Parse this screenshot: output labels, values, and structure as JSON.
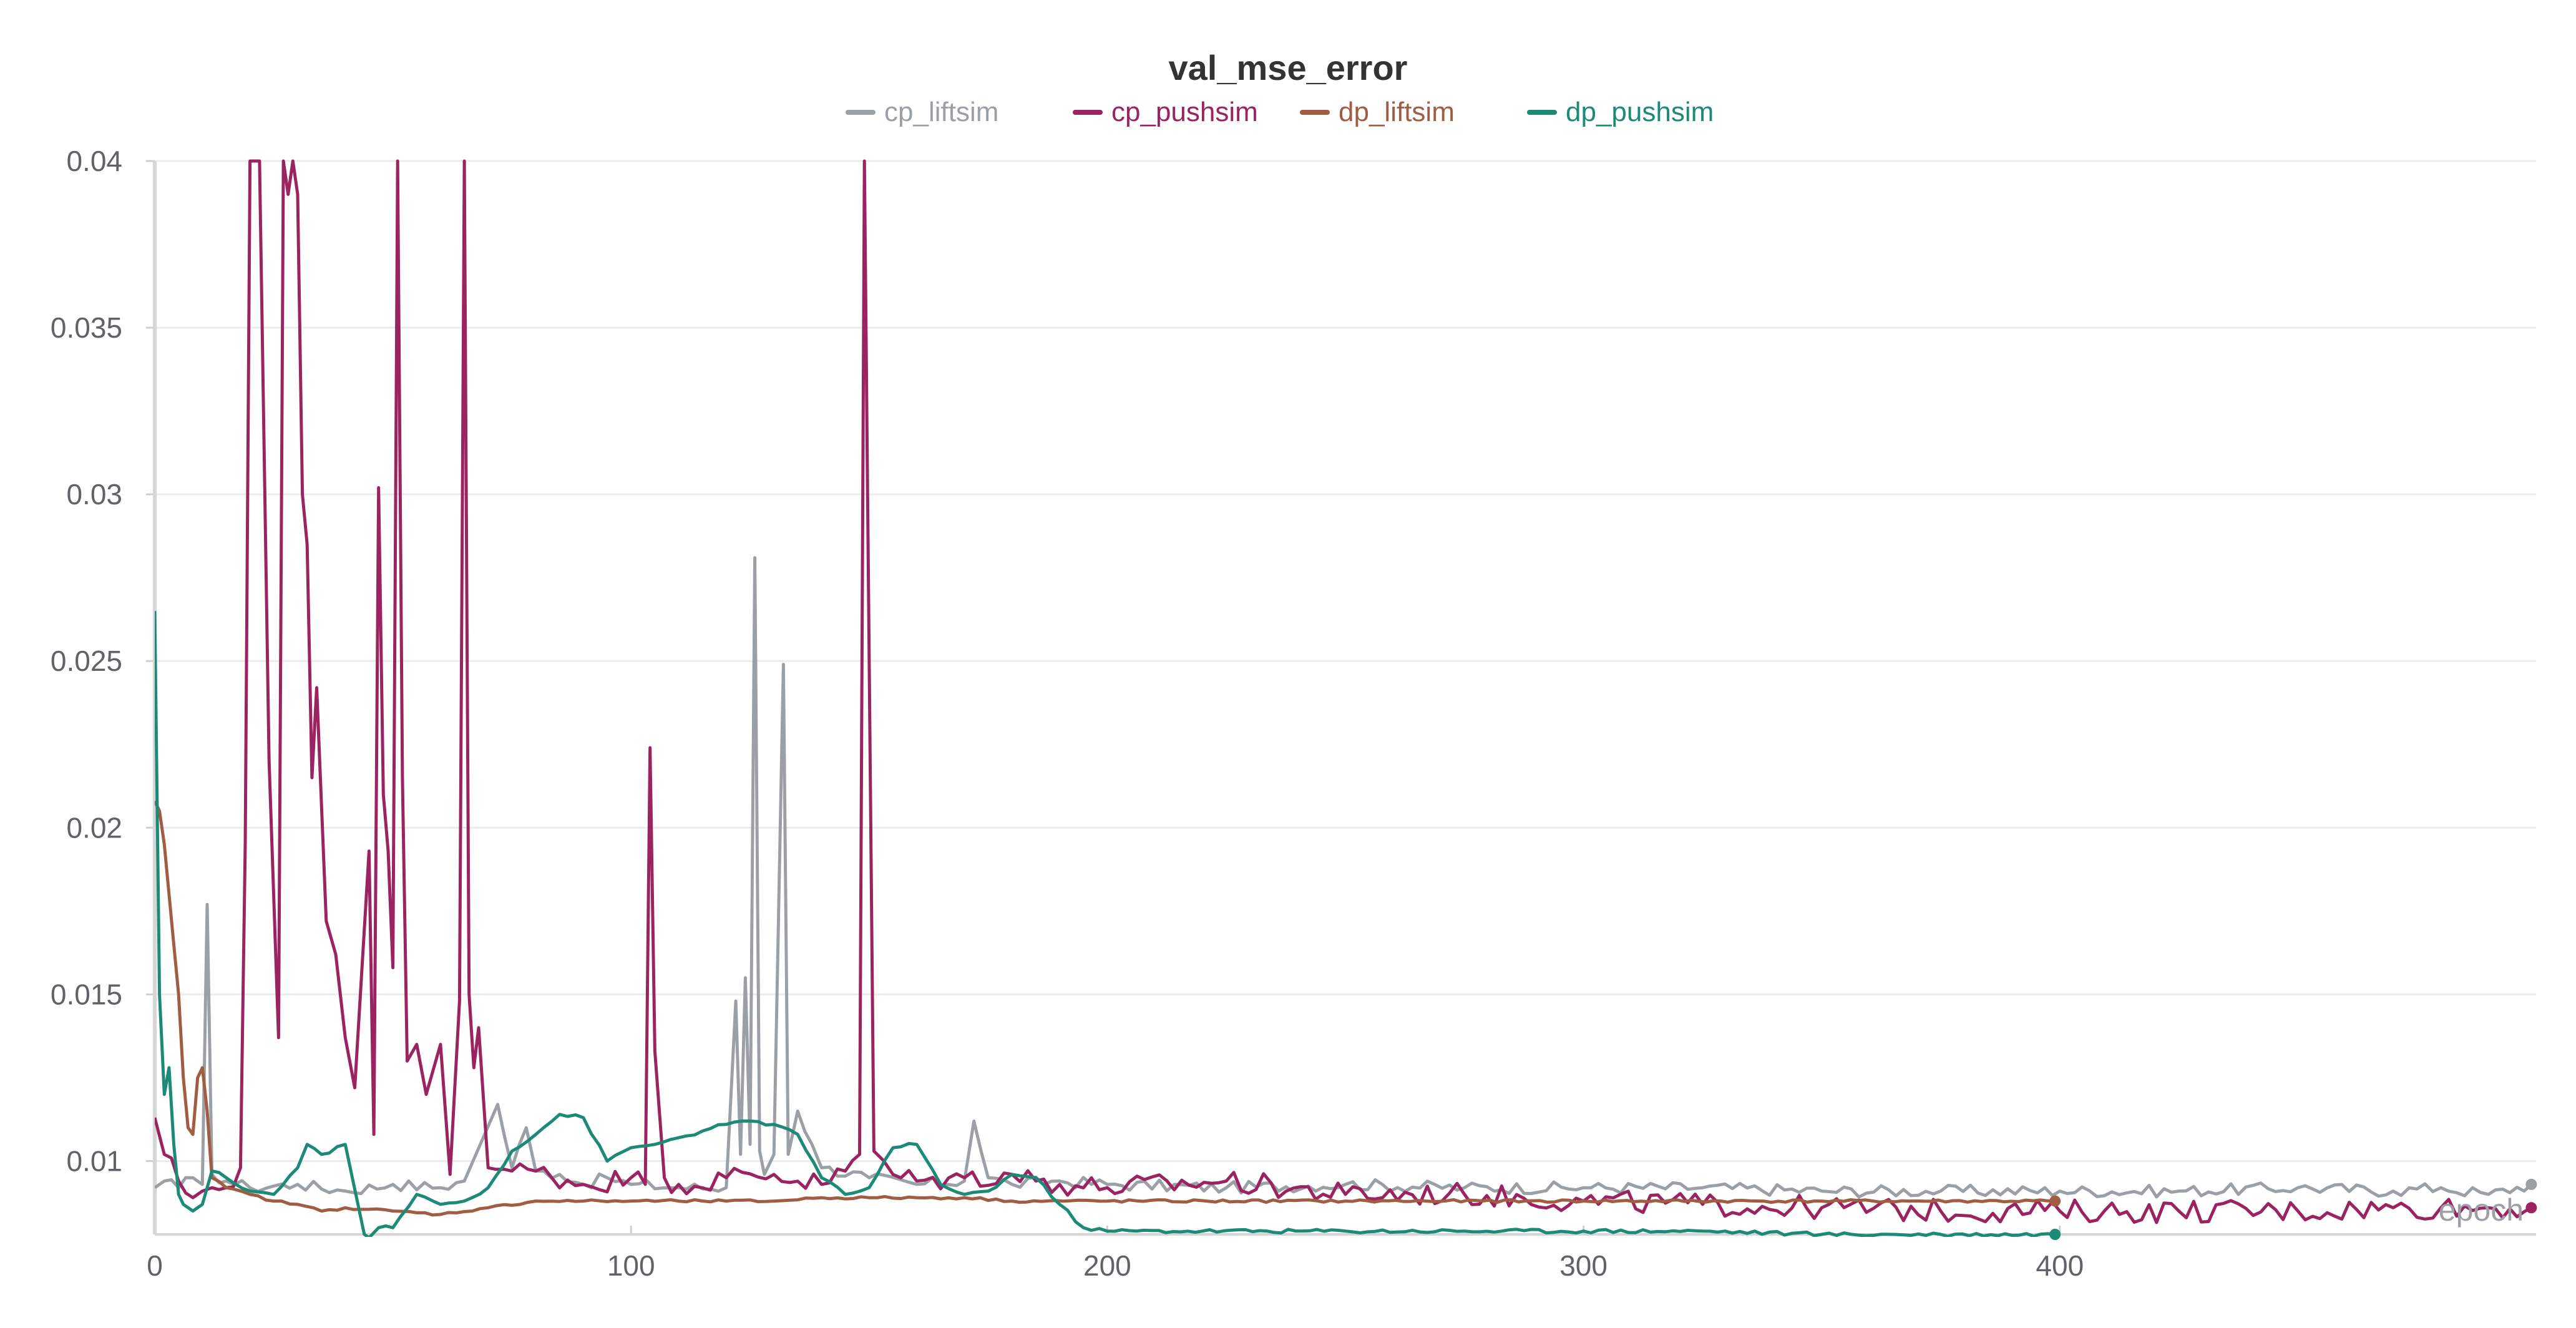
{
  "chart_data": {
    "type": "line",
    "title": "val_mse_error",
    "xlabel": "epoch",
    "ylabel": "",
    "xlim": [
      0,
      500
    ],
    "ylim": [
      0.0078,
      0.04
    ],
    "grid": true,
    "legend_position": "top-center",
    "x_ticks": [
      0,
      100,
      200,
      300,
      400
    ],
    "x_tick_labels": [
      "0",
      "100",
      "200",
      "300",
      "400"
    ],
    "y_ticks": [
      0.01,
      0.015,
      0.02,
      0.025,
      0.03,
      0.035,
      0.04
    ],
    "y_tick_labels": [
      "0.01",
      "0.015",
      "0.02",
      "0.025",
      "0.03",
      "0.035",
      "0.04"
    ],
    "series": [
      {
        "name": "cp_liftsim",
        "color": "#9aa0a6",
        "x": [
          0,
          2,
          5,
          8,
          10,
          11,
          12,
          15,
          20,
          30,
          40,
          50,
          60,
          65,
          72,
          75,
          78,
          80,
          85,
          90,
          95,
          100,
          110,
          120,
          122,
          123,
          124,
          125,
          126,
          127,
          128,
          130,
          132,
          133,
          135,
          138,
          140,
          150,
          160,
          170,
          172,
          175,
          180,
          190,
          200,
          225,
          250,
          275,
          300,
          325,
          350,
          375,
          400,
          425,
          450,
          470,
          480,
          490,
          499
        ],
        "y": [
          0.0092,
          0.0094,
          0.0092,
          0.0095,
          0.0093,
          0.0177,
          0.0096,
          0.0094,
          0.0092,
          0.0093,
          0.0091,
          0.0093,
          0.0092,
          0.0094,
          0.0117,
          0.0098,
          0.011,
          0.0097,
          0.0096,
          0.0093,
          0.0095,
          0.0093,
          0.0092,
          0.0092,
          0.0148,
          0.0102,
          0.0155,
          0.0105,
          0.0281,
          0.0103,
          0.0096,
          0.0102,
          0.0249,
          0.0102,
          0.0115,
          0.0105,
          0.0098,
          0.0095,
          0.0093,
          0.0094,
          0.0112,
          0.0095,
          0.0093,
          0.0094,
          0.0093,
          0.0092,
          0.0093,
          0.0092,
          0.0092,
          0.0092,
          0.0091,
          0.0091,
          0.0091,
          0.0091,
          0.0092,
          0.0091,
          0.0092,
          0.009,
          0.0093
        ]
      },
      {
        "name": "cp_pushsim",
        "color": "#9b2361",
        "x": [
          0,
          2,
          5,
          8,
          10,
          12,
          15,
          18,
          19,
          20,
          22,
          24,
          26,
          27,
          28,
          29,
          30,
          31,
          32,
          33,
          34,
          36,
          38,
          40,
          42,
          45,
          46,
          47,
          48,
          49,
          50,
          51,
          52,
          53,
          55,
          57,
          60,
          62,
          64,
          65,
          66,
          67,
          68,
          70,
          75,
          80,
          90,
          100,
          103,
          104,
          105,
          107,
          110,
          120,
          130,
          140,
          145,
          148,
          149,
          151,
          155,
          160,
          170,
          180,
          190,
          200,
          225,
          250,
          275,
          300,
          325,
          350,
          375,
          400,
          425,
          450,
          470,
          480,
          490,
          499
        ],
        "y": [
          0.0113,
          0.0102,
          0.0094,
          0.0089,
          0.0091,
          0.0092,
          0.0092,
          0.0098,
          0.0195,
          0.04,
          0.04,
          0.022,
          0.0137,
          0.04,
          0.039,
          0.04,
          0.039,
          0.03,
          0.0285,
          0.0215,
          0.0242,
          0.0172,
          0.0162,
          0.0137,
          0.0122,
          0.0193,
          0.0108,
          0.0302,
          0.021,
          0.0193,
          0.0158,
          0.04,
          0.0215,
          0.013,
          0.0135,
          0.012,
          0.0135,
          0.0096,
          0.0148,
          0.04,
          0.015,
          0.0128,
          0.014,
          0.0098,
          0.0097,
          0.0097,
          0.0093,
          0.0095,
          0.0093,
          0.0224,
          0.0133,
          0.0095,
          0.0093,
          0.0095,
          0.0096,
          0.0093,
          0.0097,
          0.0102,
          0.04,
          0.0103,
          0.0096,
          0.0094,
          0.0095,
          0.0096,
          0.0093,
          0.0092,
          0.0094,
          0.009,
          0.009,
          0.0088,
          0.0087,
          0.0086,
          0.0085,
          0.0085,
          0.0085,
          0.0085,
          0.0086,
          0.0086,
          0.0086,
          0.0086
        ]
      },
      {
        "name": "dp_liftsim",
        "color": "#a15d42",
        "x": [
          0,
          1,
          2,
          3,
          4,
          5,
          6,
          7,
          8,
          9,
          10,
          11,
          12,
          15,
          20,
          25,
          30,
          35,
          40,
          50,
          60,
          70,
          80,
          90,
          100,
          110,
          120,
          130,
          140,
          150,
          160,
          170,
          180,
          200,
          250,
          300,
          350,
          399
        ],
        "y": [
          0.0208,
          0.0205,
          0.0195,
          0.018,
          0.0165,
          0.015,
          0.0125,
          0.011,
          0.0108,
          0.0125,
          0.0128,
          0.0115,
          0.0095,
          0.0092,
          0.009,
          0.0088,
          0.0087,
          0.0085,
          0.0086,
          0.0085,
          0.0084,
          0.0086,
          0.0088,
          0.0088,
          0.0088,
          0.0088,
          0.0088,
          0.0088,
          0.0089,
          0.0089,
          0.0089,
          0.0089,
          0.0088,
          0.0088,
          0.0088,
          0.0088,
          0.0088,
          0.0088
        ]
      },
      {
        "name": "dp_pushsim",
        "color": "#1d8a78",
        "x": [
          0,
          1,
          2,
          3,
          4,
          5,
          6,
          8,
          10,
          12,
          15,
          20,
          25,
          30,
          32,
          35,
          40,
          44,
          45,
          47,
          50,
          55,
          60,
          65,
          70,
          75,
          80,
          85,
          90,
          95,
          100,
          105,
          110,
          115,
          120,
          125,
          130,
          135,
          140,
          145,
          150,
          155,
          160,
          165,
          170,
          175,
          180,
          185,
          190,
          195,
          200,
          220,
          250,
          275,
          300,
          325,
          350,
          375,
          399
        ],
        "y": [
          0.0265,
          0.015,
          0.012,
          0.0128,
          0.0105,
          0.009,
          0.0087,
          0.0085,
          0.0087,
          0.0097,
          0.0095,
          0.0091,
          0.009,
          0.0098,
          0.0105,
          0.0102,
          0.0105,
          0.0078,
          0.0077,
          0.008,
          0.008,
          0.009,
          0.0087,
          0.0088,
          0.0092,
          0.0103,
          0.0108,
          0.0114,
          0.0113,
          0.01,
          0.0104,
          0.0105,
          0.0107,
          0.0109,
          0.0111,
          0.0112,
          0.0111,
          0.0108,
          0.0095,
          0.009,
          0.0092,
          0.0104,
          0.0105,
          0.0093,
          0.009,
          0.0091,
          0.0096,
          0.0095,
          0.0087,
          0.008,
          0.0079,
          0.0079,
          0.0079,
          0.0079,
          0.0079,
          0.0079,
          0.0078,
          0.0078,
          0.0078
        ]
      }
    ]
  }
}
